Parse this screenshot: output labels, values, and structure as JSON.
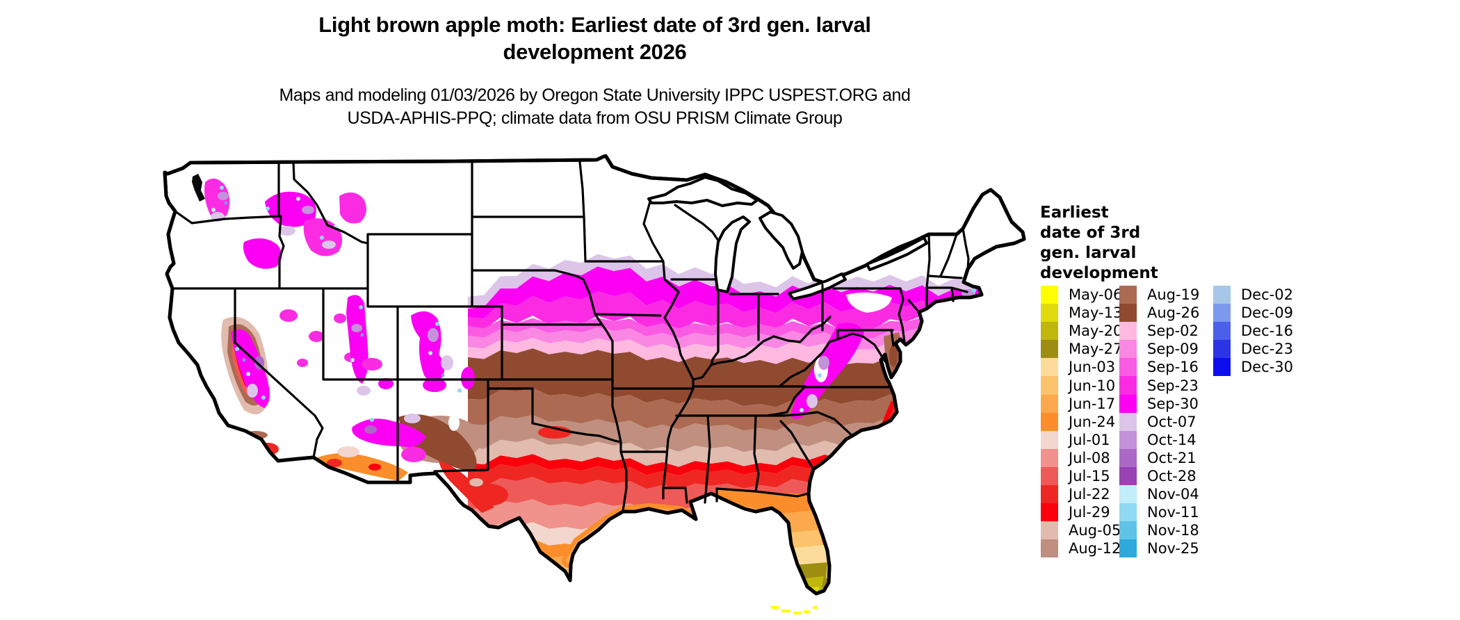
{
  "header": {
    "title_line1": "Light brown apple moth: Earliest date of 3rd gen. larval",
    "title_line2": "development 2026",
    "subtitle_line1": "Maps and modeling 01/03/2026 by Oregon State University IPPC USPEST.ORG and",
    "subtitle_line2": "USDA-APHIS-PPQ; climate data from OSU PRISM Climate Group"
  },
  "legend": {
    "title": "Earliest\ndate of 3rd\ngen. larval\ndevelopment",
    "columns": [
      {
        "entries": [
          {
            "label": "May-06",
            "color": "#FFFF00"
          },
          {
            "label": "May-13",
            "color": "#DFDB0C"
          },
          {
            "label": "May-20",
            "color": "#BFB70B"
          },
          {
            "label": "May-27",
            "color": "#9D8E12"
          },
          {
            "label": "Jun-03",
            "color": "#FBDC9A"
          },
          {
            "label": "Jun-10",
            "color": "#FCC26C"
          },
          {
            "label": "Jun-17",
            "color": "#FBA94C"
          },
          {
            "label": "Jun-24",
            "color": "#FB8E2A"
          },
          {
            "label": "Jul-01",
            "color": "#F3D6CE"
          },
          {
            "label": "Jul-08",
            "color": "#F0938C"
          },
          {
            "label": "Jul-15",
            "color": "#EE5A57"
          },
          {
            "label": "Jul-22",
            "color": "#EE2722"
          },
          {
            "label": "Jul-29",
            "color": "#FB000C"
          },
          {
            "label": "Aug-05",
            "color": "#E0BBAE"
          },
          {
            "label": "Aug-12",
            "color": "#C08F7F"
          }
        ]
      },
      {
        "entries": [
          {
            "label": "Aug-19",
            "color": "#AC6A52"
          },
          {
            "label": "Aug-26",
            "color": "#8F4A30"
          },
          {
            "label": "Sep-02",
            "color": "#FDB9DF"
          },
          {
            "label": "Sep-09",
            "color": "#FA87E3"
          },
          {
            "label": "Sep-16",
            "color": "#FA5BE3"
          },
          {
            "label": "Sep-23",
            "color": "#FB2BE3"
          },
          {
            "label": "Sep-30",
            "color": "#FB00F3"
          },
          {
            "label": "Oct-07",
            "color": "#DCC5E9"
          },
          {
            "label": "Oct-14",
            "color": "#C491DB"
          },
          {
            "label": "Oct-21",
            "color": "#AC68C6"
          },
          {
            "label": "Oct-28",
            "color": "#9A41B3"
          },
          {
            "label": "Nov-04",
            "color": "#C2EDFB"
          },
          {
            "label": "Nov-11",
            "color": "#8FD9F2"
          },
          {
            "label": "Nov-18",
            "color": "#5FC3E7"
          },
          {
            "label": "Nov-25",
            "color": "#2FA8DC"
          }
        ]
      },
      {
        "entries": [
          {
            "label": "Dec-02",
            "color": "#A6C7E7"
          },
          {
            "label": "Dec-09",
            "color": "#7C99EE"
          },
          {
            "label": "Dec-16",
            "color": "#4C5FEB"
          },
          {
            "label": "Dec-23",
            "color": "#2B35E5"
          },
          {
            "label": "Dec-30",
            "color": "#0D0DF0"
          }
        ]
      }
    ]
  },
  "map": {
    "region": "Contiguous United States",
    "outline_color": "#000000",
    "no_data_color": "#FFFFFF"
  }
}
